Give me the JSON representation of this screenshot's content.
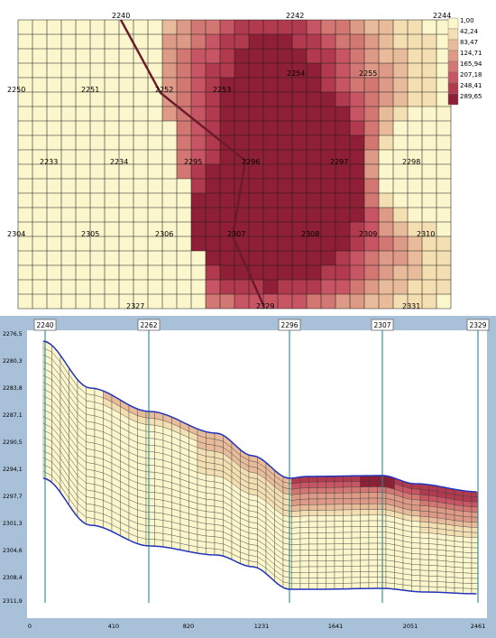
{
  "top_map": {
    "well_labels": [
      {
        "text": "2240",
        "col": 0,
        "row": 0,
        "id": "2240"
      },
      {
        "text": "2242",
        "col": 0,
        "row": 0,
        "id": "2242"
      },
      {
        "text": "2244",
        "col": 0,
        "row": 0,
        "id": "2244"
      },
      {
        "text": "2250",
        "col": 0,
        "row": 0,
        "id": "2250"
      },
      {
        "text": "2251",
        "col": 0,
        "row": 0,
        "id": "2251"
      },
      {
        "text": "2252",
        "col": 0,
        "row": 0,
        "id": "2252"
      },
      {
        "text": "2253",
        "col": 0,
        "row": 0,
        "id": "2253"
      },
      {
        "text": "2254",
        "col": 0,
        "row": 0,
        "id": "2254"
      },
      {
        "text": "2255",
        "col": 0,
        "row": 0,
        "id": "2255"
      },
      {
        "text": "2233",
        "col": 0,
        "row": 0,
        "id": "2233"
      },
      {
        "text": "2234",
        "col": 0,
        "row": 0,
        "id": "2234"
      },
      {
        "text": "2295",
        "col": 0,
        "row": 0,
        "id": "2295"
      },
      {
        "text": "2296",
        "col": 0,
        "row": 0,
        "id": "2296"
      },
      {
        "text": "2297",
        "col": 0,
        "row": 0,
        "id": "2297"
      },
      {
        "text": "2298",
        "col": 0,
        "row": 0,
        "id": "2298"
      },
      {
        "text": "2304",
        "col": 0,
        "row": 0,
        "id": "2304"
      },
      {
        "text": "2305",
        "col": 0,
        "row": 0,
        "id": "2305"
      },
      {
        "text": "2306",
        "col": 0,
        "row": 0,
        "id": "2306"
      },
      {
        "text": "2307",
        "col": 0,
        "row": 0,
        "id": "2307"
      },
      {
        "text": "2308",
        "col": 0,
        "row": 0,
        "id": "2308"
      },
      {
        "text": "2309",
        "col": 0,
        "row": 0,
        "id": "2309"
      },
      {
        "text": "2310",
        "col": 0,
        "row": 0,
        "id": "2310"
      },
      {
        "text": "2327",
        "col": 0,
        "row": 0,
        "id": "2327"
      },
      {
        "text": "2329",
        "col": 0,
        "row": 0,
        "id": "2329"
      },
      {
        "text": "2331",
        "col": 0,
        "row": 0,
        "id": "2331"
      }
    ],
    "legend": {
      "values": [
        "1,00",
        "42,24",
        "83,47",
        "124,71",
        "165,94",
        "207,18",
        "248,41",
        "289,65"
      ],
      "colors": [
        "#fbf6cc",
        "#f3dfb1",
        "#e8bc9a",
        "#dd9a86",
        "#d37773",
        "#c75563",
        "#b13a4f",
        "#8f1f36"
      ]
    },
    "profile_line_color": "#6b1a2a"
  },
  "cross_section": {
    "well_headers": [
      "2240",
      "2262",
      "2296",
      "2307",
      "2329"
    ],
    "y_axis_labels": [
      "2276,5",
      "2280,3",
      "2283,8",
      "2287,1",
      "2290,5",
      "2294,1",
      "2297,7",
      "2301,3",
      "2304,6",
      "2308,4",
      "2311,9"
    ],
    "x_axis_labels": [
      "0",
      "410",
      "820",
      "1231",
      "1641",
      "2051",
      "2461"
    ],
    "frame_color": "#a8c0d8",
    "boundary_color": "#2233bb",
    "well_line_color": "#2a8a8a"
  }
}
